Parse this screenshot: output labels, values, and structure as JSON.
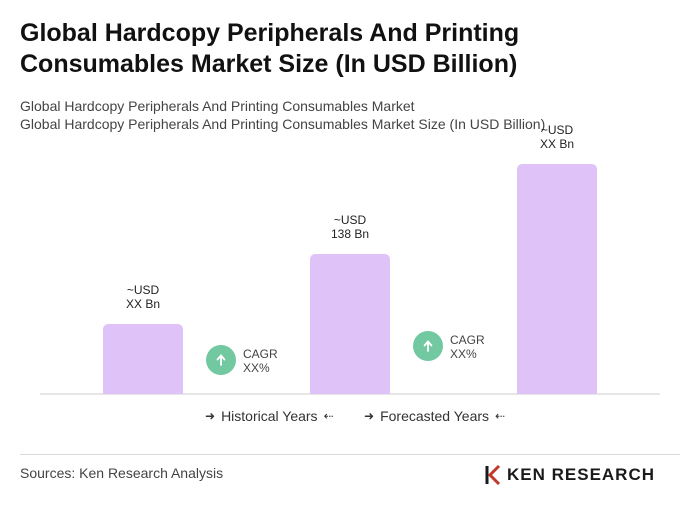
{
  "header": {
    "title": "Global Hardcopy Peripherals And Printing Consumables Market Size (In USD Billion)",
    "subtitle_1": "Global Hardcopy Peripherals And Printing Consumables Market",
    "subtitle_2": "Global Hardcopy Peripherals And Printing Consumables Market Size (In USD Billion)"
  },
  "chart_data": {
    "type": "bar",
    "categories": [
      "",
      "",
      ""
    ],
    "bar_labels": [
      [
        "~USD",
        "XX Bn"
      ],
      [
        "~USD",
        "138 Bn"
      ],
      [
        "~USD",
        "XX Bn"
      ]
    ],
    "values": [
      70,
      140,
      230
    ],
    "cagr_badges": [
      [
        "CAGR",
        "XX%"
      ],
      [
        "CAGR",
        "XX%"
      ]
    ],
    "grid": false,
    "colors": {
      "bar": "#dfc3f8",
      "badge": "#72c8a0",
      "baseline": "#cccccc"
    }
  },
  "legend": {
    "historical": "Historical Years",
    "forecasted": "Forecasted Years",
    "arrow_in": "➜",
    "arrow_out": "⇠"
  },
  "footer": {
    "source": "Sources: Ken Research Analysis",
    "logo_text": "KEN RESEARCH"
  }
}
